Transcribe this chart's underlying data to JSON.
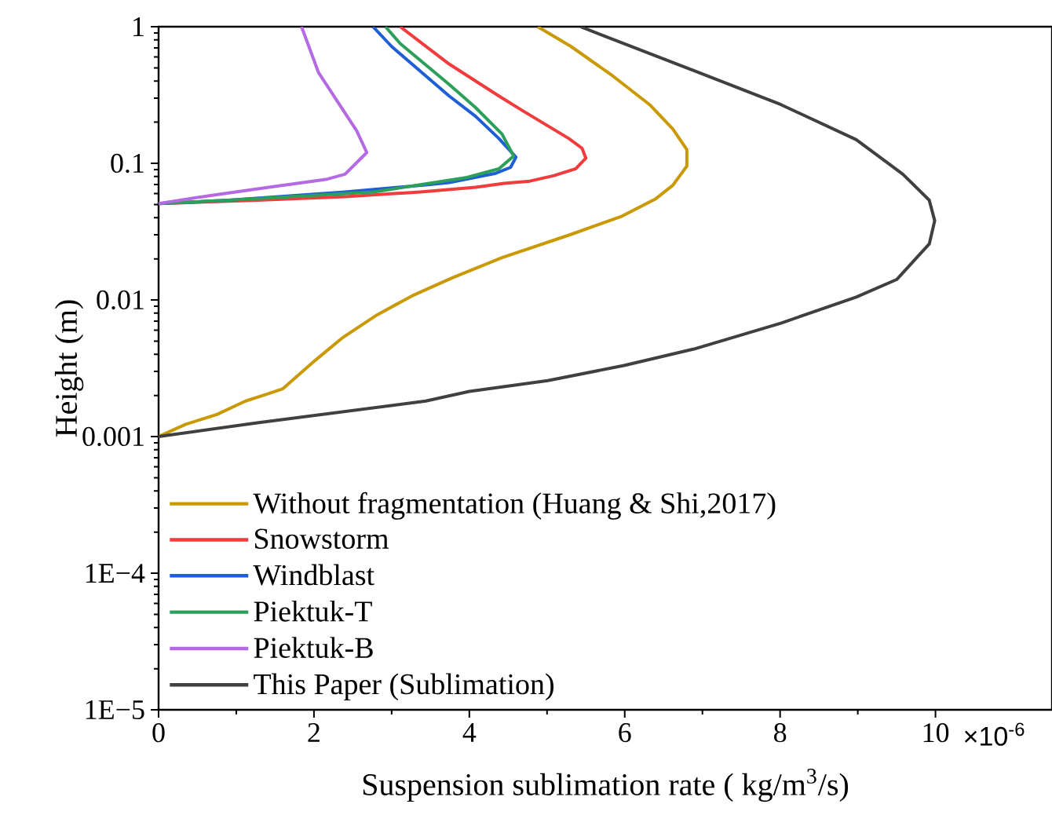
{
  "chart_data": {
    "type": "line",
    "xlabel": "Suspension sublimation rate ( kg/m$^{3}$/s)",
    "ylabel": "Height (m)",
    "log": "y",
    "xlim": [
      0,
      11.5
    ],
    "ylim": [
      1e-05,
      1
    ],
    "xticks": [
      0,
      2,
      4,
      6,
      8,
      10
    ],
    "yticks": [
      {
        "value": 1e-05,
        "label": "1E−5"
      },
      {
        "value": 0.0001,
        "label": "1E−4"
      },
      0.001,
      0.01,
      0.1,
      1
    ],
    "legend": "bottom left",
    "annotations": [
      "×10$^{-6}$"
    ],
    "series": [
      {
        "name": "Without fragmentation (Huang & Shi,2017)",
        "color": "#c99a06",
        "x": [
          0,
          0.35,
          0.75,
          1.12,
          1.39,
          1.6,
          2.02,
          2.36,
          2.81,
          3.26,
          3.78,
          4.42,
          5.31,
          5.95,
          6.4,
          6.62,
          6.8,
          6.8,
          6.62,
          6.32,
          5.84,
          5.31,
          4.88
        ],
        "values": [
          0.001,
          0.00123,
          0.00145,
          0.00182,
          0.00204,
          0.00224,
          0.00363,
          0.00525,
          0.00776,
          0.0107,
          0.0145,
          0.0204,
          0.0302,
          0.0407,
          0.055,
          0.0692,
          0.0955,
          0.126,
          0.178,
          0.269,
          0.439,
          0.716,
          1
        ]
      },
      {
        "name": "Snowstorm",
        "color": "#f03c3c",
        "x": [
          0,
          1.27,
          2.4,
          3.37,
          4.08,
          4.45,
          4.78,
          5.09,
          5.37,
          5.5,
          5.45,
          5.28,
          4.68,
          4.38,
          3.74,
          3.11
        ],
        "values": [
          0.0507,
          0.0537,
          0.057,
          0.0617,
          0.0667,
          0.0714,
          0.0741,
          0.0813,
          0.0912,
          0.109,
          0.129,
          0.152,
          0.244,
          0.311,
          0.533,
          1
        ]
      },
      {
        "name": "Windblast",
        "color": "#1f5fd6",
        "x": [
          0,
          0.9,
          2.4,
          3.44,
          3.74,
          4.34,
          4.53,
          4.6,
          4.38,
          4.08,
          3.74,
          3.0,
          2.76
        ],
        "values": [
          0.0507,
          0.0537,
          0.0617,
          0.0695,
          0.0724,
          0.0845,
          0.0933,
          0.111,
          0.152,
          0.221,
          0.311,
          0.716,
          1
        ]
      },
      {
        "name": "Piektuk-T",
        "color": "#2ca05a",
        "x": [
          0,
          0.9,
          2.77,
          3.97,
          4.38,
          4.57,
          4.42,
          4.08,
          3.74,
          3.11,
          2.92
        ],
        "values": [
          0.0507,
          0.0537,
          0.0617,
          0.0789,
          0.0912,
          0.113,
          0.164,
          0.256,
          0.378,
          0.752,
          1
        ]
      },
      {
        "name": "Piektuk-B",
        "color": "#b36ae2",
        "x": [
          0,
          0.67,
          1.42,
          2.17,
          2.4,
          2.68,
          2.55,
          2.06,
          1.84
        ],
        "values": [
          0.0507,
          0.0582,
          0.0667,
          0.0766,
          0.0832,
          0.12,
          0.173,
          0.46,
          1
        ]
      },
      {
        "name": "This Paper (Sublimation)",
        "color": "#404040",
        "x": [
          0,
          1.27,
          3.44,
          4.0,
          5.01,
          5.99,
          6.89,
          8.01,
          8.98,
          9.5,
          9.92,
          9.99,
          9.92,
          9.58,
          8.98,
          8.01,
          6.96,
          5.43
        ],
        "values": [
          0.001,
          0.00126,
          0.00182,
          0.00214,
          0.00257,
          0.00331,
          0.00437,
          0.00676,
          0.0105,
          0.0141,
          0.0257,
          0.038,
          0.0537,
          0.0832,
          0.149,
          0.269,
          0.46,
          1
        ]
      }
    ]
  }
}
